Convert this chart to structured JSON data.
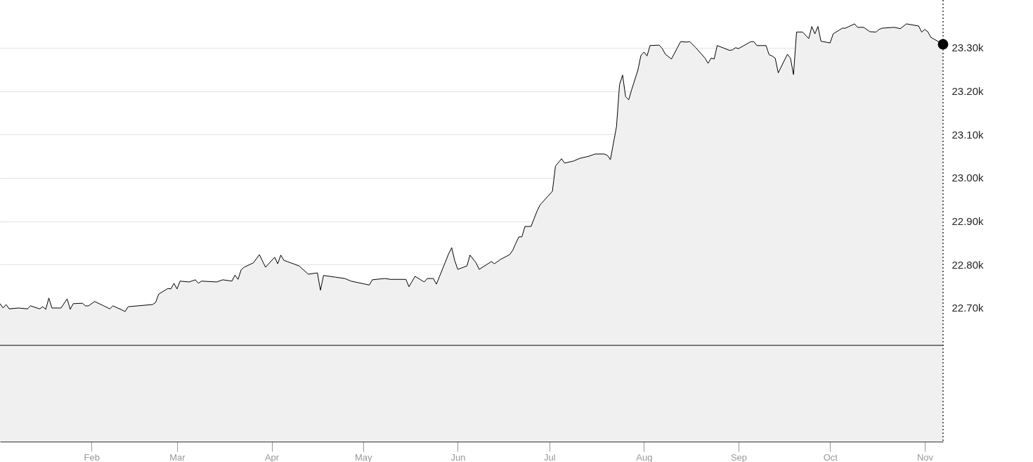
{
  "chart_data": {
    "type": "area",
    "xlim": [
      "--01-02",
      "--11-07"
    ],
    "xticks": [
      {
        "value": "--02-01",
        "label": "Feb"
      },
      {
        "value": "--03-01",
        "label": "Mar"
      },
      {
        "value": "--04-01",
        "label": "Apr"
      },
      {
        "value": "--05-01",
        "label": "May"
      },
      {
        "value": "--06-01",
        "label": "Jun"
      },
      {
        "value": "--07-01",
        "label": "Jul"
      },
      {
        "value": "--08-01",
        "label": "Aug"
      },
      {
        "value": "--09-01",
        "label": "Sep"
      },
      {
        "value": "--10-01",
        "label": "Oct"
      },
      {
        "value": "--11-01",
        "label": "Nov"
      }
    ],
    "ylim": [
      22392,
      23410
    ],
    "yticks": [
      {
        "value": 22700,
        "label": "22.70k"
      },
      {
        "value": 22800,
        "label": "22.80k"
      },
      {
        "value": 22900,
        "label": "22.90k"
      },
      {
        "value": 23000,
        "label": "23.00k"
      },
      {
        "value": 23100,
        "label": "23.10k"
      },
      {
        "value": 23200,
        "label": "23.20k"
      },
      {
        "value": 23300,
        "label": "23.30k"
      }
    ],
    "grid": "y",
    "ref_lines": [
      {
        "axis": "y",
        "value": 22614,
        "color": "#333333",
        "line_style": "solid"
      },
      {
        "axis": "x",
        "value": "--11-07",
        "color": "#333333",
        "line_style": "dotted"
      }
    ],
    "series": [
      {
        "color": "#000000",
        "x": [
          "--01-02",
          "--01-03",
          "--01-04",
          "--01-05",
          "--01-08",
          "--01-11",
          "--01-12",
          "--01-15",
          "--01-16",
          "--01-17",
          "--01-18",
          "--01-19",
          "--01-22",
          "--01-24",
          "--01-25",
          "--01-26",
          "--01-29",
          "--01-30",
          "--01-31",
          "--02-02",
          "--02-05",
          "--02-07",
          "--02-08",
          "--02-12",
          "--02-13",
          "--02-21",
          "--02-22",
          "--02-23",
          "--02-26",
          "--02-27",
          "--02-28",
          "--03-01",
          "--03-02",
          "--03-05",
          "--03-07",
          "--03-08",
          "--03-09",
          "--03-14",
          "--03-16",
          "--03-19",
          "--03-20",
          "--03-21",
          "--03-22",
          "--03-23",
          "--03-26",
          "--03-28",
          "--03-30",
          "--04-02",
          "--04-03",
          "--04-04",
          "--04-05",
          "--04-10",
          "--04-13",
          "--04-16",
          "--04-17",
          "--04-18",
          "--04-22",
          "--04-25",
          "--04-27",
          "--05-03",
          "--05-04",
          "--05-08",
          "--05-10",
          "--05-15",
          "--05-16",
          "--05-18",
          "--05-21",
          "--05-22",
          "--05-24",
          "--05-25",
          "--05-29",
          "--05-30",
          "--05-31",
          "--06-01",
          "--06-04",
          "--06-05",
          "--06-07",
          "--06-08",
          "--06-12",
          "--06-13",
          "--06-15",
          "--06-18",
          "--06-19",
          "--06-20",
          "--06-21",
          "--06-22",
          "--06-23",
          "--06-25",
          "--06-27",
          "--06-28",
          "--07-02",
          "--07-03",
          "--07-05",
          "--07-06",
          "--07-09",
          "--07-11",
          "--07-14",
          "--07-16",
          "--07-19",
          "--07-20",
          "--07-21",
          "--07-23",
          "--07-24",
          "--07-25",
          "--07-26",
          "--07-27",
          "--07-28",
          "--07-30",
          "--07-31",
          "--08-01",
          "--08-02",
          "--08-03",
          "--08-06",
          "--08-07",
          "--08-08",
          "--08-10",
          "--08-13",
          "--08-15",
          "--08-16",
          "--08-18",
          "--08-21",
          "--08-22",
          "--08-23",
          "--08-24",
          "--08-25",
          "--08-29",
          "--08-30",
          "--08-31",
          "--09-01",
          "--09-05",
          "--09-06",
          "--09-07",
          "--09-10",
          "--09-11",
          "--09-12",
          "--09-13",
          "--09-14",
          "--09-17",
          "--09-18",
          "--09-19",
          "--09-20",
          "--09-22",
          "--09-24",
          "--09-25",
          "--09-26",
          "--09-27",
          "--09-28",
          "--10-01",
          "--10-02",
          "--10-05",
          "--10-06",
          "--10-09",
          "--10-10",
          "--10-12",
          "--10-14",
          "--10-16",
          "--10-17",
          "--10-18",
          "--10-22",
          "--10-24",
          "--10-26",
          "--10-30",
          "--10-31",
          "--11-01",
          "--11-02",
          "--11-03",
          "--11-07"
        ],
        "values": [
          22710,
          22700,
          22708,
          22698,
          22700,
          22698,
          22705,
          22698,
          22703,
          22697,
          22723,
          22700,
          22700,
          22721,
          22697,
          22710,
          22711,
          22705,
          22705,
          22715,
          22705,
          22698,
          22705,
          22692,
          22703,
          22708,
          22713,
          22732,
          22745,
          22744,
          22757,
          22744,
          22762,
          22760,
          22765,
          22757,
          22762,
          22760,
          22765,
          22762,
          22776,
          22766,
          22788,
          22794,
          22804,
          22823,
          22794,
          22817,
          22802,
          22822,
          22810,
          22797,
          22778,
          22781,
          22741,
          22775,
          22771,
          22768,
          22762,
          22753,
          22765,
          22768,
          22766,
          22766,
          22749,
          22773,
          22760,
          22768,
          22768,
          22755,
          22825,
          22839,
          22809,
          22789,
          22797,
          22822,
          22804,
          22789,
          22807,
          22802,
          22812,
          22823,
          22833,
          22849,
          22864,
          22864,
          22888,
          22888,
          22924,
          22938,
          22969,
          23027,
          23044,
          23034,
          23039,
          23045,
          23050,
          23055,
          23055,
          23052,
          23042,
          23118,
          23215,
          23237,
          23187,
          23180,
          23204,
          23248,
          23282,
          23290,
          23281,
          23305,
          23306,
          23298,
          23285,
          23274,
          23314,
          23313,
          23314,
          23300,
          23276,
          23264,
          23276,
          23274,
          23305,
          23294,
          23295,
          23300,
          23298,
          23314,
          23314,
          23305,
          23305,
          23284,
          23281,
          23276,
          23242,
          23285,
          23276,
          23238,
          23336,
          23336,
          23321,
          23349,
          23332,
          23349,
          23315,
          23311,
          23332,
          23345,
          23345,
          23355,
          23347,
          23347,
          23337,
          23336,
          23342,
          23345,
          23347,
          23344,
          23355,
          23350,
          23336,
          23342,
          23337,
          23324,
          23308
        ]
      },
      {
        "type": "scatter",
        "color": "#000000",
        "marker": "circle",
        "x": [
          "--11-07"
        ],
        "values": [
          23308
        ]
      }
    ]
  }
}
